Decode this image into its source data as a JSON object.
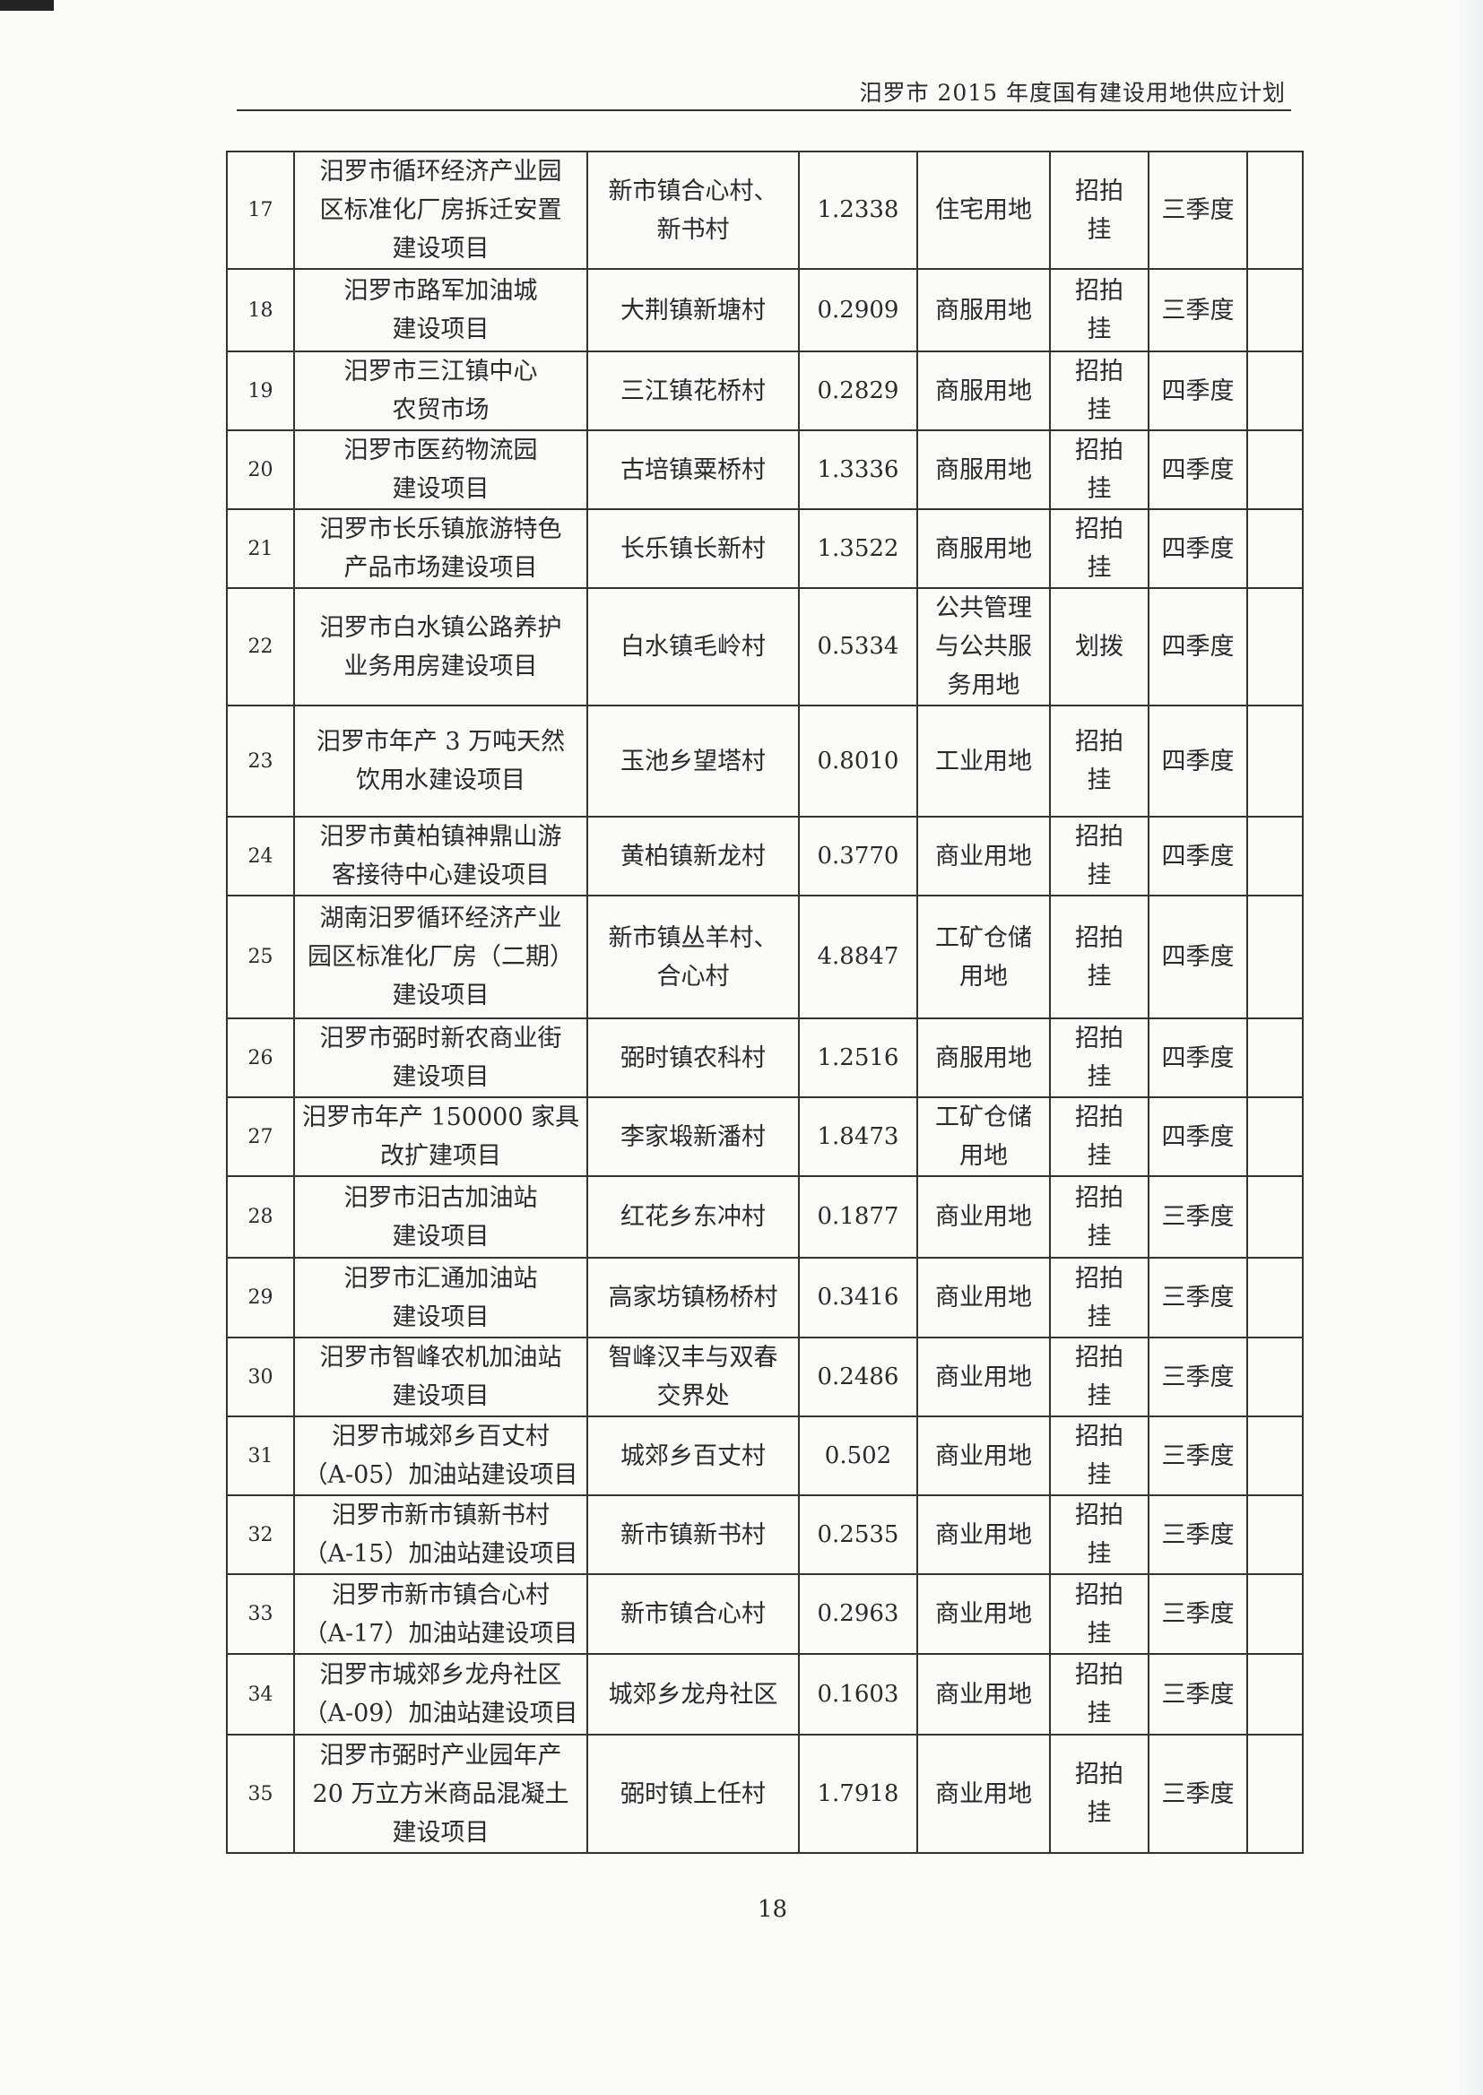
{
  "header": {
    "title": "汨罗市 2015 年度国有建设用地供应计划"
  },
  "page_number": "18",
  "table": {
    "rows": [
      {
        "no": "17",
        "project": "汨罗市循环经济产业园\n区标准化厂房拆迁安置\n建设项目",
        "location": "新市镇合心村、\n新书村",
        "area": "1.2338",
        "use": "住宅用地",
        "method": "招拍\n挂",
        "quarter": "三季度",
        "note": ""
      },
      {
        "no": "18",
        "project": "汨罗市路军加油城\n建设项目",
        "location": "大荆镇新塘村",
        "area": "0.2909",
        "use": "商服用地",
        "method": "招拍\n挂",
        "quarter": "三季度",
        "note": ""
      },
      {
        "no": "19",
        "project": "汨罗市三江镇中心\n农贸市场",
        "location": "三江镇花桥村",
        "area": "0.2829",
        "use": "商服用地",
        "method": "招拍\n挂",
        "quarter": "四季度",
        "note": ""
      },
      {
        "no": "20",
        "project": "汨罗市医药物流园\n建设项目",
        "location": "古培镇粟桥村",
        "area": "1.3336",
        "use": "商服用地",
        "method": "招拍\n挂",
        "quarter": "四季度",
        "note": ""
      },
      {
        "no": "21",
        "project": "汨罗市长乐镇旅游特色\n产品市场建设项目",
        "location": "长乐镇长新村",
        "area": "1.3522",
        "use": "商服用地",
        "method": "招拍\n挂",
        "quarter": "四季度",
        "note": ""
      },
      {
        "no": "22",
        "project": "汨罗市白水镇公路养护\n业务用房建设项目",
        "location": "白水镇毛岭村",
        "area": "0.5334",
        "use": "公共管理\n与公共服\n务用地",
        "method": "划拨",
        "quarter": "四季度",
        "note": ""
      },
      {
        "no": "23",
        "project": "汨罗市年产 3 万吨天然\n饮用水建设项目",
        "location": "玉池乡望塔村",
        "area": "0.8010",
        "use": "工业用地",
        "method": "招拍\n挂",
        "quarter": "四季度",
        "note": ""
      },
      {
        "no": "24",
        "project": "汨罗市黄柏镇神鼎山游\n客接待中心建设项目",
        "location": "黄柏镇新龙村",
        "area": "0.3770",
        "use": "商业用地",
        "method": "招拍\n挂",
        "quarter": "四季度",
        "note": ""
      },
      {
        "no": "25",
        "project": "湖南汨罗循环经济产业\n园区标准化厂房（二期）\n建设项目",
        "location": "新市镇丛羊村、\n合心村",
        "area": "4.8847",
        "use": "工矿仓储\n用地",
        "method": "招拍\n挂",
        "quarter": "四季度",
        "note": ""
      },
      {
        "no": "26",
        "project": "汨罗市弼时新农商业街\n建设项目",
        "location": "弼时镇农科村",
        "area": "1.2516",
        "use": "商服用地",
        "method": "招拍\n挂",
        "quarter": "四季度",
        "note": ""
      },
      {
        "no": "27",
        "project": "汨罗市年产 150000 家具\n改扩建项目",
        "location": "李家塅新潘村",
        "area": "1.8473",
        "use": "工矿仓储\n用地",
        "method": "招拍\n挂",
        "quarter": "四季度",
        "note": ""
      },
      {
        "no": "28",
        "project": "汨罗市汨古加油站\n建设项目",
        "location": "红花乡东冲村",
        "area": "0.1877",
        "use": "商业用地",
        "method": "招拍\n挂",
        "quarter": "三季度",
        "note": ""
      },
      {
        "no": "29",
        "project": "汨罗市汇通加油站\n建设项目",
        "location": "高家坊镇杨桥村",
        "area": "0.3416",
        "use": "商业用地",
        "method": "招拍\n挂",
        "quarter": "三季度",
        "note": ""
      },
      {
        "no": "30",
        "project": "汨罗市智峰农机加油站\n建设项目",
        "location": "智峰汉丰与双春\n交界处",
        "area": "0.2486",
        "use": "商业用地",
        "method": "招拍\n挂",
        "quarter": "三季度",
        "note": ""
      },
      {
        "no": "31",
        "project": "汨罗市城郊乡百丈村\n（A-05）加油站建设项目",
        "location": "城郊乡百丈村",
        "area": "0.502",
        "use": "商业用地",
        "method": "招拍\n挂",
        "quarter": "三季度",
        "note": ""
      },
      {
        "no": "32",
        "project": "汨罗市新市镇新书村\n（A-15）加油站建设项目",
        "location": "新市镇新书村",
        "area": "0.2535",
        "use": "商业用地",
        "method": "招拍\n挂",
        "quarter": "三季度",
        "note": ""
      },
      {
        "no": "33",
        "project": "汨罗市新市镇合心村\n（A-17）加油站建设项目",
        "location": "新市镇合心村",
        "area": "0.2963",
        "use": "商业用地",
        "method": "招拍\n挂",
        "quarter": "三季度",
        "note": ""
      },
      {
        "no": "34",
        "project": "汨罗市城郊乡龙舟社区\n（A-09）加油站建设项目",
        "location": "城郊乡龙舟社区",
        "area": "0.1603",
        "use": "商业用地",
        "method": "招拍\n挂",
        "quarter": "三季度",
        "note": ""
      },
      {
        "no": "35",
        "project": "汨罗市弼时产业园年产\n20 万立方米商品混凝土\n建设项目",
        "location": "弼时镇上任村",
        "area": "1.7918",
        "use": "商业用地",
        "method": "招拍\n挂",
        "quarter": "三季度",
        "note": ""
      }
    ]
  }
}
